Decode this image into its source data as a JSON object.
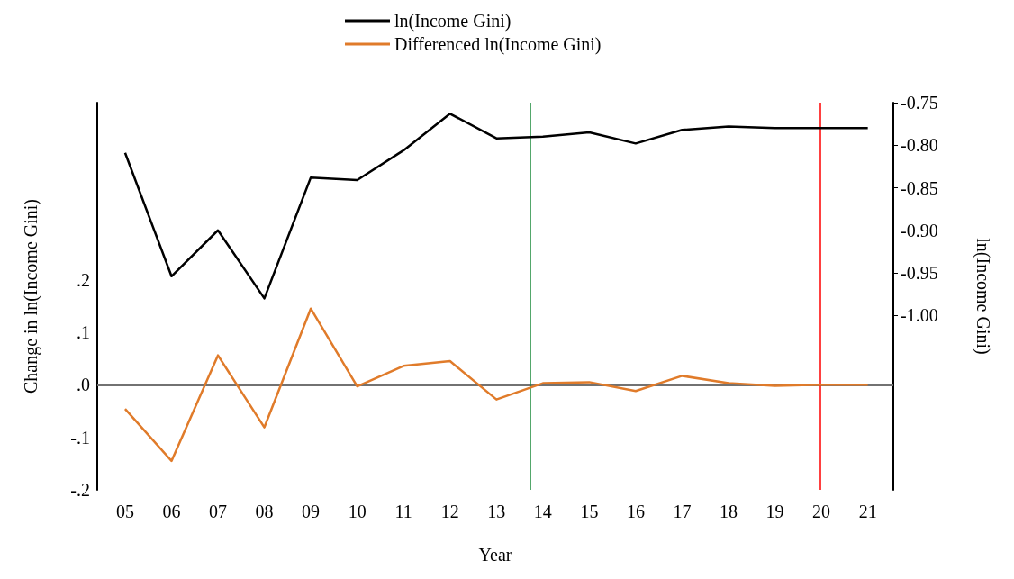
{
  "chart_data": {
    "type": "line",
    "xlabel": "Year",
    "ylabel": "Change in ln(Income Gini)",
    "y2label": "ln(Income Gini)",
    "x": [
      5,
      6,
      7,
      8,
      9,
      10,
      11,
      12,
      13,
      14,
      15,
      16,
      17,
      18,
      19,
      20,
      21
    ],
    "xlim": [
      4.4,
      21.55
    ],
    "xticks": [
      {
        "value": 5,
        "label": "05"
      },
      {
        "value": 6,
        "label": "06"
      },
      {
        "value": 7,
        "label": "07"
      },
      {
        "value": 8,
        "label": "08"
      },
      {
        "value": 9,
        "label": "09"
      },
      10,
      11,
      12,
      13,
      14,
      15,
      16,
      17,
      18,
      19,
      20,
      21
    ],
    "ylim": [
      -0.2,
      0.537
    ],
    "yticks": [
      {
        "value": -0.2,
        "label": "-.2"
      },
      {
        "value": -0.1,
        "label": "-.1"
      },
      {
        "value": 0,
        "label": ".0"
      },
      {
        "value": 0.1,
        "label": ".1"
      },
      {
        "value": 0.2,
        "label": ".2"
      }
    ],
    "y2lim": [
      -1.205,
      -0.75
    ],
    "y2ticks": [
      {
        "value": -1.0,
        "label": "-1.00"
      },
      -0.95,
      {
        "value": -0.9,
        "label": "-0.90"
      },
      -0.85,
      {
        "value": -0.8,
        "label": "-0.80"
      },
      -0.75
    ],
    "series": [
      {
        "name": "ln(Income Gini)",
        "color": "#000000",
        "axis": "y2",
        "values": [
          -0.809,
          -0.954,
          -0.9,
          -0.98,
          -0.838,
          -0.841,
          -0.806,
          -0.763,
          -0.792,
          -0.79,
          -0.785,
          -0.798,
          -0.782,
          -0.778,
          -0.78,
          -0.78,
          -0.78
        ]
      },
      {
        "name": "Differenced ln(Income Gini)",
        "color": "#e07b2a",
        "values": [
          -0.046,
          -0.145,
          0.056,
          -0.081,
          0.145,
          -0.003,
          0.036,
          0.045,
          -0.028,
          0.003,
          0.005,
          -0.012,
          0.017,
          0.003,
          -0.002,
          0,
          0
        ]
      }
    ],
    "ref_lines": [
      {
        "axis": "y",
        "value": 0,
        "color": "#999999"
      },
      {
        "axis": "x",
        "value": 13.72,
        "color": "#1a8a3a"
      },
      {
        "axis": "x",
        "value": 19.98,
        "color": "#ff0000"
      }
    ],
    "legend": "top",
    "grid": false,
    "marker": "none",
    "line_style": "solid"
  }
}
